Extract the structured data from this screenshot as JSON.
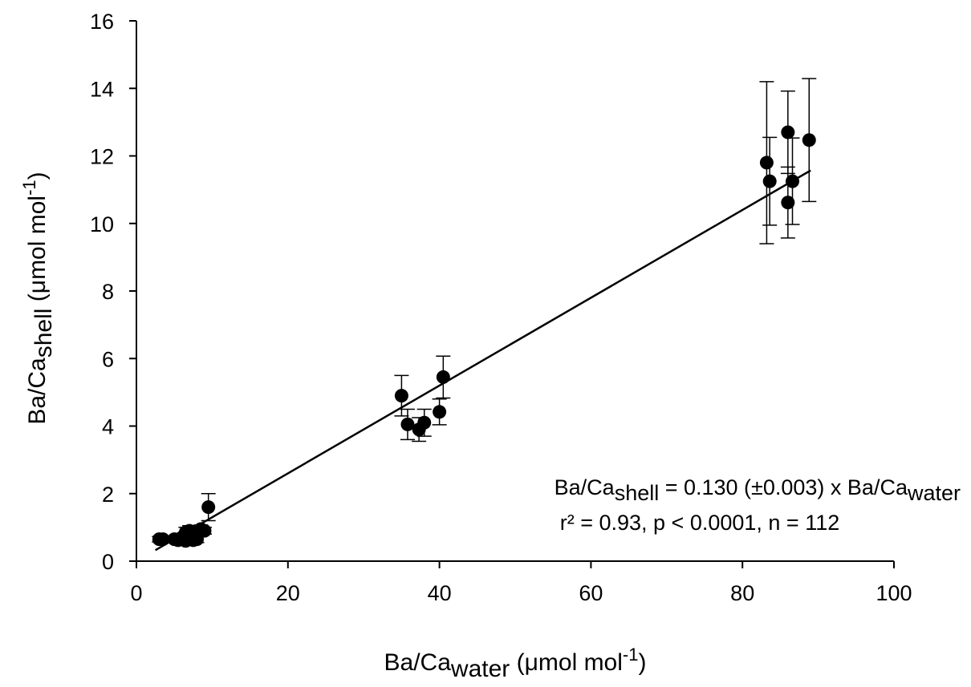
{
  "chart_data": {
    "type": "scatter",
    "title": "",
    "xlabel": {
      "main": "Ba/Ca",
      "sub": "water",
      "unit_prefix": " (μmol mol",
      "unit_exp": "-1",
      "unit_suffix": ")"
    },
    "ylabel": {
      "main": "Ba/Ca",
      "sub": "shell",
      "unit_prefix": " (μmol mol",
      "unit_exp": "-1",
      "unit_suffix": ")"
    },
    "xlim": [
      0,
      100
    ],
    "ylim": [
      0,
      16
    ],
    "xticks": [
      0,
      20,
      40,
      60,
      80,
      100
    ],
    "yticks": [
      0,
      2,
      4,
      6,
      8,
      10,
      12,
      14,
      16
    ],
    "grid": false,
    "marker_color": "#000000",
    "regression": {
      "slope": 0.13,
      "intercept": 0,
      "x_range": [
        2.5,
        89
      ]
    },
    "annotation": {
      "line1_prefix": "Ba/Ca",
      "line1_sub1": "shell",
      "line1_mid": " = 0.130 (±0.003) x Ba/Ca",
      "line1_sub2": "water",
      "line2": "r² = 0.93, p < 0.0001, n = 112"
    },
    "points": [
      {
        "x": 3.0,
        "y": 0.65,
        "err": 0.08
      },
      {
        "x": 3.5,
        "y": 0.65,
        "err": 0.08
      },
      {
        "x": 5.0,
        "y": 0.65,
        "err": 0.1
      },
      {
        "x": 5.5,
        "y": 0.62,
        "err": 0.1
      },
      {
        "x": 6.0,
        "y": 0.7,
        "err": 0.12
      },
      {
        "x": 6.5,
        "y": 0.85,
        "err": 0.15
      },
      {
        "x": 6.5,
        "y": 0.6,
        "err": 0.12
      },
      {
        "x": 7.0,
        "y": 0.75,
        "err": 0.12
      },
      {
        "x": 7.0,
        "y": 0.9,
        "err": 0.15
      },
      {
        "x": 7.5,
        "y": 0.8,
        "err": 0.12
      },
      {
        "x": 7.5,
        "y": 0.62,
        "err": 0.1
      },
      {
        "x": 8.0,
        "y": 0.85,
        "err": 0.12
      },
      {
        "x": 8.0,
        "y": 0.65,
        "err": 0.1
      },
      {
        "x": 8.5,
        "y": 0.95,
        "err": 0.12
      },
      {
        "x": 9.0,
        "y": 0.9,
        "err": 0.1
      },
      {
        "x": 9.5,
        "y": 1.6,
        "err": 0.4
      },
      {
        "x": 35.0,
        "y": 4.9,
        "err": 0.6
      },
      {
        "x": 35.8,
        "y": 4.05,
        "err": 0.45
      },
      {
        "x": 37.3,
        "y": 3.9,
        "err": 0.35
      },
      {
        "x": 38.0,
        "y": 4.1,
        "err": 0.4
      },
      {
        "x": 40.0,
        "y": 4.42,
        "err": 0.38
      },
      {
        "x": 40.5,
        "y": 5.45,
        "err": 0.62
      },
      {
        "x": 83.2,
        "y": 11.8,
        "err": 2.4
      },
      {
        "x": 83.6,
        "y": 11.25,
        "err": 1.3
      },
      {
        "x": 86.0,
        "y": 12.7,
        "err": 1.22
      },
      {
        "x": 86.0,
        "y": 10.62,
        "err": 1.05
      },
      {
        "x": 86.6,
        "y": 11.25,
        "err": 1.28
      },
      {
        "x": 88.8,
        "y": 12.47,
        "err": 1.82
      }
    ]
  }
}
